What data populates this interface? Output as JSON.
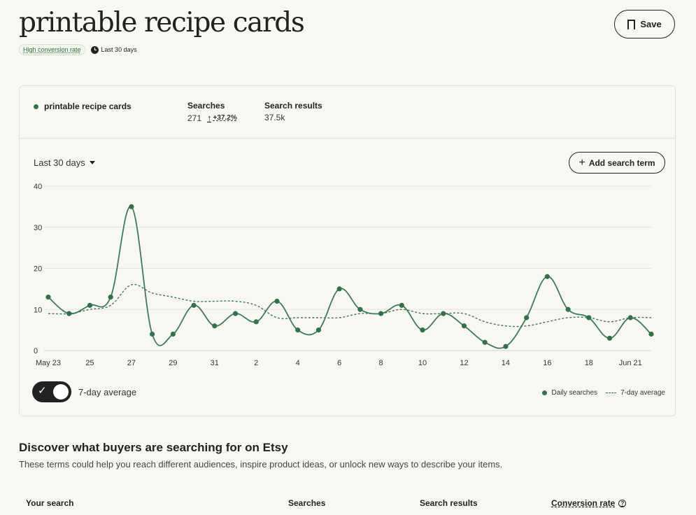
{
  "header": {
    "title": "printable recipe cards",
    "badge": "High conversion rate",
    "period": "Last 30 days",
    "save_label": "Save"
  },
  "summary": {
    "term": "printable recipe cards",
    "searches_label": "Searches",
    "searches_value": "271",
    "searches_change": "+37.2%",
    "results_label": "Search results",
    "results_value": "37.5k"
  },
  "controls": {
    "range_label": "Last 30 days",
    "add_term_label": "Add search term",
    "toggle_label": "7-day average",
    "toggle_on": true
  },
  "chart_data": {
    "type": "line",
    "x": [
      "May 23",
      "May 24",
      "May 25",
      "May 26",
      "May 27",
      "May 28",
      "May 29",
      "May 30",
      "May 31",
      "Jun 1",
      "Jun 2",
      "Jun 3",
      "Jun 4",
      "Jun 5",
      "Jun 6",
      "Jun 7",
      "Jun 8",
      "Jun 9",
      "Jun 10",
      "Jun 11",
      "Jun 12",
      "Jun 13",
      "Jun 14",
      "Jun 15",
      "Jun 16",
      "Jun 17",
      "Jun 18",
      "Jun 19",
      "Jun 20",
      "Jun 21"
    ],
    "x_tick_labels": [
      "May 23",
      "25",
      "27",
      "29",
      "31",
      "2",
      "4",
      "6",
      "8",
      "10",
      "12",
      "14",
      "16",
      "18",
      "Jun 21"
    ],
    "y_ticks": [
      "0",
      "10",
      "20",
      "30",
      "40"
    ],
    "ylim": [
      0,
      40
    ],
    "grid": true,
    "legend_position": "bottom-right",
    "series": [
      {
        "name": "Daily searches",
        "style": "solid-with-markers",
        "color": "#3f7a5a",
        "values": [
          13,
          9,
          11,
          13,
          35,
          4,
          4,
          11,
          6,
          9,
          7,
          12,
          5,
          5,
          15,
          10,
          9,
          11,
          5,
          9,
          6,
          2,
          1,
          8,
          18,
          10,
          8,
          3,
          8,
          4
        ]
      },
      {
        "name": "7-day average",
        "style": "dashed",
        "color": "#3f7a5a",
        "values": [
          9,
          9,
          10,
          11,
          16,
          14,
          13,
          12,
          12,
          12,
          11,
          8,
          8,
          8,
          8,
          9,
          9,
          10,
          9,
          9,
          9,
          7,
          6,
          6,
          7,
          8,
          8,
          7,
          8,
          8
        ]
      }
    ]
  },
  "discover": {
    "title": "Discover what buyers are searching for on Etsy",
    "description": "These terms could help you reach different audiences, inspire product ideas, or unlock new ways to describe your items.",
    "columns": [
      "Your search",
      "Searches",
      "Search results",
      "Conversion rate"
    ]
  }
}
